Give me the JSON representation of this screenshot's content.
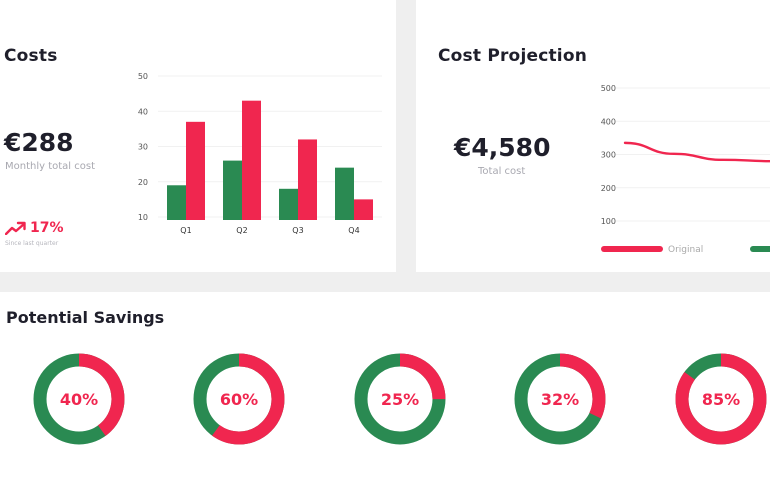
{
  "costs": {
    "title": "Costs",
    "amount": "€288",
    "amount_caption": "Monthly total cost",
    "trend": "17%",
    "trend_icon": "trending-up-icon",
    "trend_caption": "Since last quarter"
  },
  "projection": {
    "title": "Cost Projection",
    "amount": "€4,580",
    "amount_caption": "Total cost"
  },
  "savings": {
    "title": "Potential Savings"
  },
  "colors": {
    "green": "#2a8a52",
    "red": "#f0264f",
    "text": "#1f1f2b",
    "muted": "#a8a8b0"
  },
  "chart_data": [
    {
      "type": "bar",
      "categories": [
        "Q1",
        "Q2",
        "Q3",
        "Q4"
      ],
      "series": [
        {
          "values": [
            19,
            26,
            18,
            24
          ],
          "color": "#2a8a52"
        },
        {
          "values": [
            37,
            43,
            32,
            15
          ],
          "color": "#f0264f"
        }
      ],
      "yticks": [
        10,
        20,
        30,
        40,
        50
      ],
      "ylim": [
        10,
        50
      ],
      "grid": true
    },
    {
      "type": "line",
      "yticks": [
        100,
        200,
        300,
        400,
        500
      ],
      "ylim": [
        100,
        500
      ],
      "series": [
        {
          "name": "Original",
          "color": "#f0264f",
          "x": [
            0,
            1,
            2,
            3
          ],
          "values": [
            335,
            302,
            284,
            280
          ]
        },
        {
          "name": "",
          "color": "#2a8a52",
          "x": [],
          "values": []
        }
      ],
      "legend": "bottom",
      "grid": true
    },
    {
      "type": "pie",
      "subtype": "donut",
      "items": [
        {
          "label": "40%",
          "value": 40
        },
        {
          "label": "60%",
          "value": 60
        },
        {
          "label": "25%",
          "value": 25
        },
        {
          "label": "32%",
          "value": 32
        },
        {
          "label": "85%",
          "value": 85
        }
      ],
      "fill_color": "#f0264f",
      "rest_color": "#2a8a52"
    }
  ]
}
